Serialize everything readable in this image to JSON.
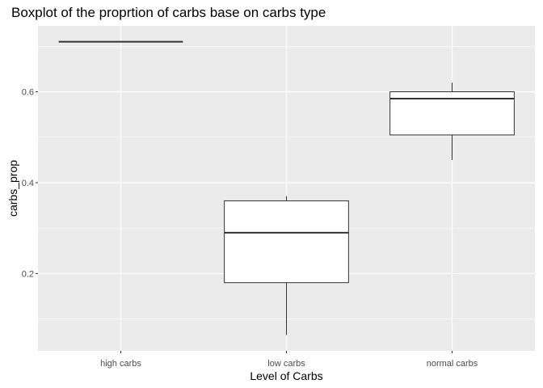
{
  "chart_data": {
    "type": "boxplot",
    "title": "Boxplot of the proprtion of carbs base on carbs type",
    "xlabel": "Level of Carbs",
    "ylabel": "carbs_prop",
    "categories": [
      "high carbs",
      "low carbs",
      "normal carbs"
    ],
    "boxes": [
      {
        "category": "high carbs",
        "min": 0.71,
        "q1": 0.71,
        "median": 0.71,
        "q3": 0.71,
        "max": 0.71
      },
      {
        "category": "low carbs",
        "min": 0.065,
        "q1": 0.18,
        "median": 0.29,
        "q3": 0.36,
        "max": 0.37
      },
      {
        "category": "normal carbs",
        "min": 0.45,
        "q1": 0.505,
        "median": 0.585,
        "q3": 0.6,
        "max": 0.62
      }
    ],
    "yticks": [
      0.2,
      0.4,
      0.6
    ],
    "ylim": [
      0.03,
      0.745
    ],
    "grid": true,
    "legend": "none",
    "colors": {
      "panel": "#ebebeb",
      "grid": "#ffffff",
      "box_fill": "#ffffff",
      "box_stroke": "#333333"
    }
  }
}
